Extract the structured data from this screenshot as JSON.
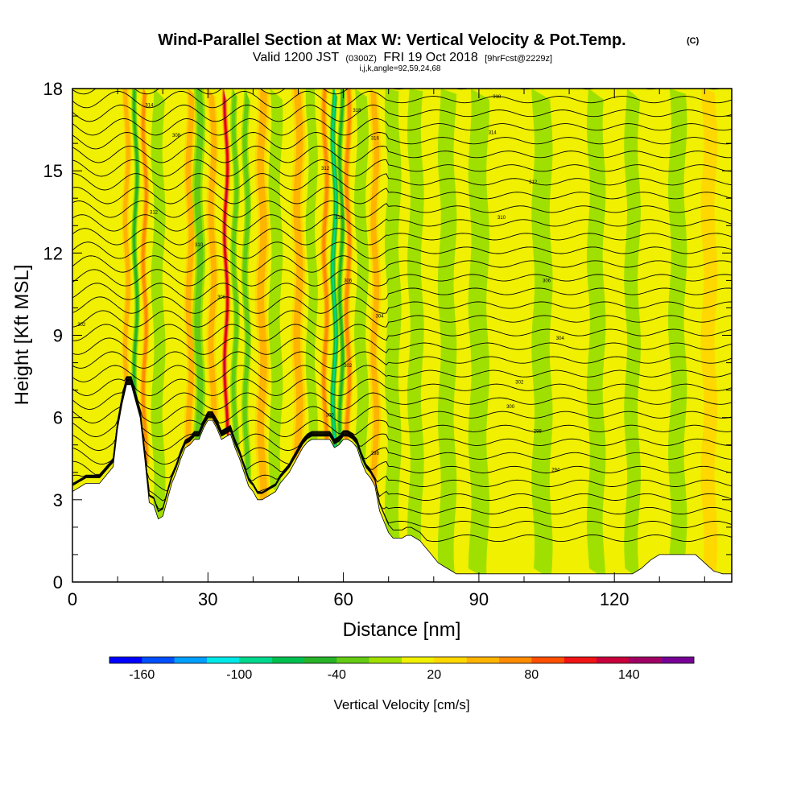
{
  "header": {
    "title": "Wind-Parallel Section at Max W: Vertical Velocity & Pot.Temp.",
    "copyright": "(C)",
    "valid_prefix": "Valid 1200 JST",
    "valid_utc": "(0300Z)",
    "valid_date": "FRI 19 Oct 2018",
    "forecast": "[9hrFcst@2229z]",
    "params": "i,j,k,angle=92,59,24,68"
  },
  "colors": {
    "terrain": "#ffffff",
    "contour": "#000000",
    "axis": "#000000"
  },
  "chart_data": {
    "type": "heatmap",
    "xlabel": "Distance [nm]",
    "ylabel": "Height [Kft MSL]",
    "xlim": [
      0,
      146
    ],
    "ylim": [
      0,
      18
    ],
    "x_ticks": [
      "0",
      "30",
      "60",
      "90",
      "120"
    ],
    "y_ticks": [
      "0",
      "3",
      "6",
      "9",
      "12",
      "15",
      "18"
    ],
    "colorbar": {
      "label": "Vertical Velocity [cm/s]",
      "tick_labels": [
        "-160",
        "-100",
        "-40",
        "20",
        "80",
        "140"
      ],
      "colors": [
        "#0000ff",
        "#0050ff",
        "#00a0ff",
        "#00e8e8",
        "#00d890",
        "#00c050",
        "#28b428",
        "#64cc14",
        "#a0e000",
        "#f0f000",
        "#ffd800",
        "#ffb400",
        "#ff8c00",
        "#ff5000",
        "#f01414",
        "#c8003c",
        "#a00064",
        "#780096"
      ]
    },
    "terrain_profile": {
      "x": [
        0,
        1,
        3,
        6,
        9,
        10,
        11,
        12,
        13,
        15,
        16,
        17,
        18,
        19,
        20,
        21,
        22,
        23,
        24,
        25,
        26,
        27,
        28,
        29,
        30,
        31,
        32,
        33,
        34,
        35,
        36,
        37,
        38,
        39,
        40,
        41,
        42,
        43,
        44,
        45,
        46,
        47,
        48,
        49,
        50,
        51,
        52,
        53,
        54,
        55,
        56,
        57,
        58,
        59,
        60,
        61,
        62,
        63,
        64,
        65,
        66,
        67,
        68,
        69,
        70,
        71,
        72,
        73,
        74,
        75,
        76,
        77,
        78,
        79,
        80,
        81,
        82,
        83,
        84,
        85,
        86,
        87,
        88,
        89,
        90,
        93,
        96,
        100,
        104,
        108,
        112,
        116,
        118,
        120,
        122,
        124,
        126,
        128,
        130,
        132,
        134,
        136,
        138,
        140,
        142,
        144,
        146
      ],
      "height": [
        3.3,
        3.4,
        3.6,
        3.6,
        4.2,
        5.6,
        6.5,
        7.2,
        7.2,
        6.0,
        4.5,
        2.9,
        2.8,
        2.3,
        2.4,
        3.0,
        3.6,
        4.0,
        4.5,
        4.9,
        5.0,
        5.2,
        5.2,
        5.6,
        5.9,
        5.9,
        5.6,
        5.2,
        5.3,
        5.4,
        4.9,
        4.5,
        4.0,
        3.5,
        3.3,
        3.0,
        3.0,
        3.1,
        3.2,
        3.3,
        3.6,
        3.8,
        4.0,
        4.3,
        4.6,
        4.9,
        5.1,
        5.2,
        5.2,
        5.2,
        5.2,
        5.2,
        4.9,
        5.0,
        5.2,
        5.2,
        5.1,
        4.9,
        4.4,
        4.0,
        3.8,
        3.5,
        2.6,
        2.2,
        1.8,
        1.6,
        1.6,
        1.6,
        1.7,
        1.7,
        1.6,
        1.5,
        1.3,
        1.1,
        0.9,
        0.7,
        0.6,
        0.5,
        0.4,
        0.3,
        0.3,
        0.3,
        0.3,
        0.3,
        0.3,
        0.3,
        0.3,
        0.3,
        0.3,
        0.3,
        0.3,
        0.3,
        0.3,
        0.3,
        0.3,
        0.3,
        0.5,
        0.8,
        1.0,
        1.0,
        1.0,
        1.0,
        1.0,
        0.7,
        0.4,
        0.3,
        0.3
      ],
      "unit_x": "nm",
      "unit_y": "Kft"
    },
    "velocity_features": [
      {
        "x": 12,
        "width": 1.5,
        "value": 50
      },
      {
        "x": 14,
        "width": 1.2,
        "value": -60
      },
      {
        "x": 16,
        "width": 1.4,
        "value": 70
      },
      {
        "x": 19,
        "width": 2.5,
        "value": -25
      },
      {
        "x": 26,
        "width": 2.0,
        "value": 45
      },
      {
        "x": 28,
        "width": 2.2,
        "value": -45
      },
      {
        "x": 31,
        "width": 2.0,
        "value": 55
      },
      {
        "x": 34,
        "width": 1.3,
        "value": 130
      },
      {
        "x": 36,
        "width": 1.4,
        "value": -55
      },
      {
        "x": 38.5,
        "width": 1.5,
        "value": -40
      },
      {
        "x": 42,
        "width": 2.5,
        "value": 40
      },
      {
        "x": 45,
        "width": 2.5,
        "value": -20
      },
      {
        "x": 50,
        "width": 2.5,
        "value": 50
      },
      {
        "x": 53,
        "width": 2.0,
        "value": -25
      },
      {
        "x": 56,
        "width": 1.5,
        "value": 70
      },
      {
        "x": 58,
        "width": 1.3,
        "value": -110
      },
      {
        "x": 59.5,
        "width": 1.2,
        "value": -70
      },
      {
        "x": 61,
        "width": 1.5,
        "value": 75
      },
      {
        "x": 64,
        "width": 2.5,
        "value": -30
      },
      {
        "x": 67,
        "width": 2.0,
        "value": 50
      },
      {
        "x": 71,
        "width": 3.0,
        "value": -20
      },
      {
        "x": 76,
        "width": 3.0,
        "value": -15
      },
      {
        "x": 83,
        "width": 3.5,
        "value": -12
      },
      {
        "x": 90,
        "width": 4.0,
        "value": -15
      },
      {
        "x": 96,
        "width": 3.5,
        "value": 15
      },
      {
        "x": 104,
        "width": 4.0,
        "value": -20
      },
      {
        "x": 110,
        "width": 4.0,
        "value": 15
      },
      {
        "x": 116,
        "width": 3.5,
        "value": -22
      },
      {
        "x": 124,
        "width": 3.0,
        "value": -25
      },
      {
        "x": 128,
        "width": 3.0,
        "value": 15
      },
      {
        "x": 134,
        "width": 3.5,
        "value": -20
      },
      {
        "x": 141,
        "width": 3.0,
        "value": 25
      }
    ],
    "isentropes": {
      "count": 34,
      "base_height": 1.6,
      "spacing": 0.5,
      "labels": [
        {
          "x": 2,
          "y": 9.4,
          "text": "302"
        },
        {
          "x": 17,
          "y": 17.4,
          "text": "314"
        },
        {
          "x": 23,
          "y": 16.3,
          "text": "308"
        },
        {
          "x": 18,
          "y": 13.5,
          "text": "312"
        },
        {
          "x": 28,
          "y": 12.3,
          "text": "310"
        },
        {
          "x": 33,
          "y": 10.4,
          "text": "306"
        },
        {
          "x": 56,
          "y": 15.1,
          "text": "312"
        },
        {
          "x": 59,
          "y": 13.3,
          "text": "310"
        },
        {
          "x": 61,
          "y": 11.0,
          "text": "306"
        },
        {
          "x": 68,
          "y": 9.7,
          "text": "304"
        },
        {
          "x": 61,
          "y": 7.9,
          "text": "302"
        },
        {
          "x": 57,
          "y": 6.1,
          "text": "300"
        },
        {
          "x": 67,
          "y": 4.7,
          "text": "298"
        },
        {
          "x": 63,
          "y": 17.2,
          "text": "318"
        },
        {
          "x": 67,
          "y": 16.2,
          "text": "316"
        },
        {
          "x": 94,
          "y": 17.7,
          "text": "318"
        },
        {
          "x": 93,
          "y": 16.4,
          "text": "314"
        },
        {
          "x": 102,
          "y": 14.6,
          "text": "312"
        },
        {
          "x": 95,
          "y": 13.3,
          "text": "310"
        },
        {
          "x": 105,
          "y": 11.0,
          "text": "306"
        },
        {
          "x": 108,
          "y": 8.9,
          "text": "304"
        },
        {
          "x": 99,
          "y": 7.3,
          "text": "302"
        },
        {
          "x": 97,
          "y": 6.4,
          "text": "300"
        },
        {
          "x": 103,
          "y": 5.5,
          "text": "298"
        },
        {
          "x": 107,
          "y": 4.1,
          "text": "294"
        }
      ]
    }
  }
}
